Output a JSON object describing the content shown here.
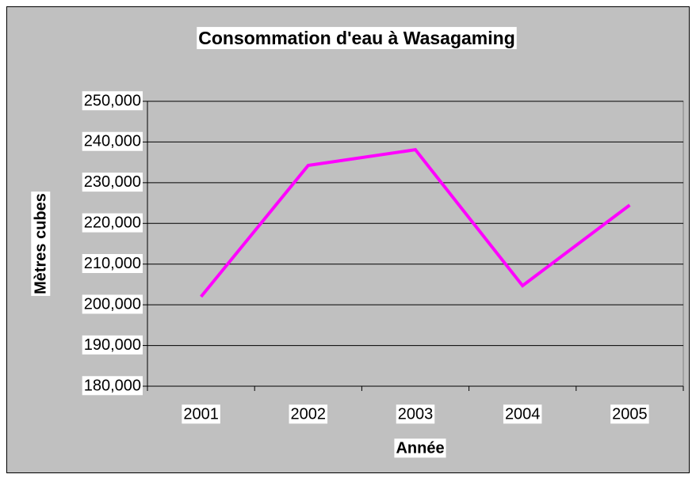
{
  "chart_data": {
    "type": "line",
    "title": "Consommation d'eau à Wasagaming",
    "x_label": "Année",
    "y_label": "Mètres cubes",
    "categories": [
      "2001",
      "2002",
      "2003",
      "2004",
      "2005"
    ],
    "series": [
      {
        "name": "Consommation",
        "color": "#ff00ff",
        "values": [
          202000,
          234250,
          238100,
          204700,
          224500
        ]
      }
    ],
    "ylim": [
      180000,
      250000
    ],
    "yticks": [
      {
        "value": 180000,
        "label": "180,000"
      },
      {
        "value": 190000,
        "label": "190,000"
      },
      {
        "value": 200000,
        "label": "200,000"
      },
      {
        "value": 210000,
        "label": "210,000"
      },
      {
        "value": 220000,
        "label": "220,000"
      },
      {
        "value": 230000,
        "label": "230,000"
      },
      {
        "value": 240000,
        "label": "240,000"
      },
      {
        "value": 250000,
        "label": "250,000"
      }
    ],
    "grid": true
  }
}
